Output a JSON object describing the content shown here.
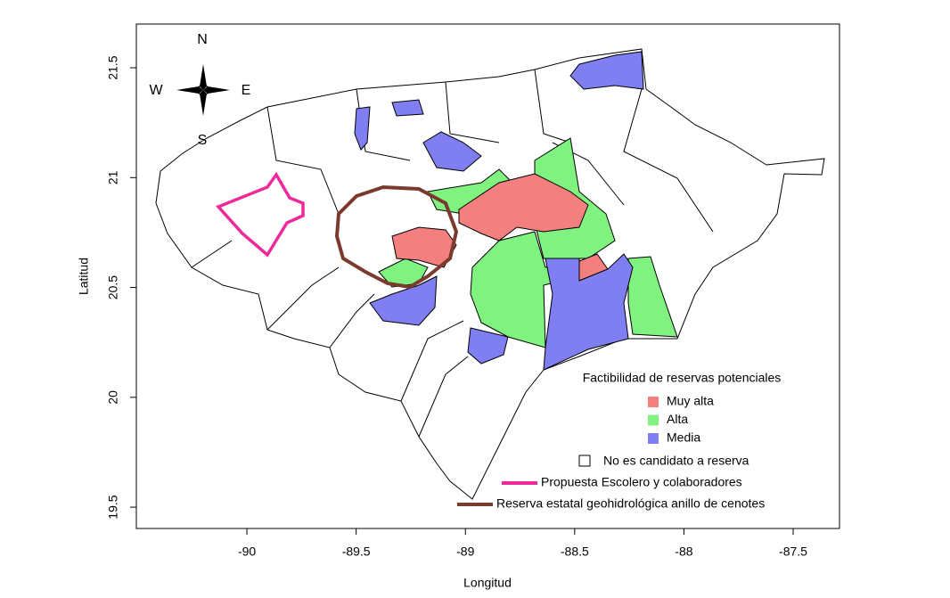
{
  "map": {
    "xlabel": "Longitud",
    "ylabel": "Latitud",
    "xlim": [
      -90.506,
      -87.288
    ],
    "ylim": [
      19.403,
      21.699
    ],
    "xticks": [
      -90,
      -89.5,
      -89,
      -88.5,
      -88,
      -87.5
    ],
    "yticks": [
      19.5,
      20,
      20.5,
      21,
      21.5
    ],
    "compass": {
      "north": "N",
      "south": "S",
      "east": "E",
      "west": "W"
    },
    "legend": {
      "title": "Factibilidad de reservas potenciales",
      "classes": [
        {
          "name": "Muy alta",
          "color": "#f47f7f"
        },
        {
          "name": "Alta",
          "color": "#80f280"
        },
        {
          "name": "Media",
          "color": "#7f7ff2"
        }
      ],
      "not_candidate": "No es candidato a reserva",
      "lines": [
        {
          "name": "Propuesta Escolero y colaboradores",
          "color": "#ee2a9a"
        },
        {
          "name": "Reserva estatal geohidrológica anillo de cenotes",
          "color": "#7a3b2e"
        }
      ]
    }
  }
}
